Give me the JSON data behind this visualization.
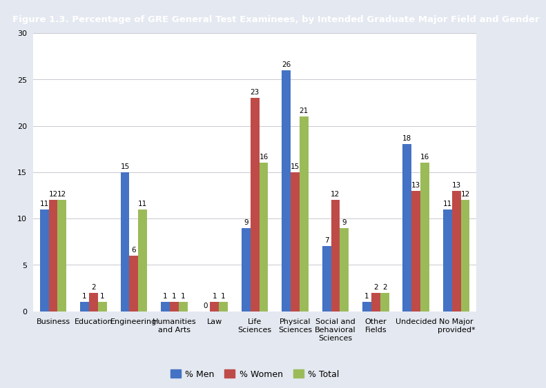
{
  "title": "Figure 1.3. Percentage of GRE General Test Examinees, by Intended Graduate Major Field and Gender",
  "categories": [
    "Business",
    "Education",
    "Engineering",
    "Humanities\nand Arts",
    "Law",
    "Life\nSciences",
    "Physical\nSciences",
    "Social and\nBehavioral\nSciences",
    "Other\nFields",
    "Undecided",
    "No Major\nprovided*"
  ],
  "men": [
    11,
    1,
    15,
    1,
    0,
    9,
    26,
    7,
    1,
    18,
    11
  ],
  "women": [
    12,
    2,
    6,
    1,
    1,
    23,
    15,
    12,
    2,
    13,
    13
  ],
  "total": [
    12,
    1,
    11,
    1,
    1,
    16,
    21,
    9,
    2,
    16,
    12
  ],
  "bar_colors": {
    "men": "#4472C4",
    "women": "#BE4B48",
    "total": "#9BBB59"
  },
  "title_bg": "#72246C",
  "title_fg": "#FFFFFF",
  "bg_color": "#E4E8F0",
  "plot_bg": "#FFFFFF",
  "inner_bg": "#EEF0F8",
  "grid_color": "#C8C8D0",
  "ylim": [
    0,
    30
  ],
  "yticks": [
    0,
    5,
    10,
    15,
    20,
    25,
    30
  ],
  "bar_width": 0.22,
  "legend_labels": [
    "% Men",
    "% Women",
    "% Total"
  ],
  "label_fontsize": 7.5,
  "axis_fontsize": 8,
  "title_fontsize": 9.5
}
